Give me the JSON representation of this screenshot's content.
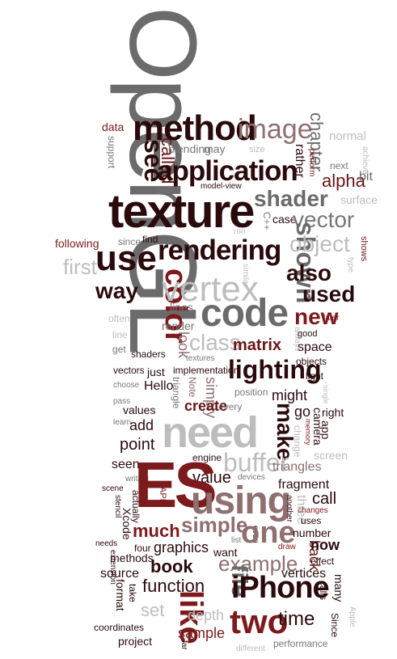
{
  "colors": {
    "dark": "#2b0a0c",
    "maroon": "#6a1416",
    "red": "#7d1a1c",
    "mauve": "#8f6f6f",
    "gray": "#777777",
    "lightgray": "#bdbdbd",
    "big_gray": "#6b6b6b"
  },
  "words": {
    "opengl": "OpenGL",
    "texture": "texture",
    "method": "method",
    "image": "image",
    "application": "application",
    "see": "see",
    "called": "called",
    "shader": "shader",
    "vector": "vector",
    "rendering": "rendering",
    "use": "use",
    "shown": "shown",
    "object": "object",
    "vertex": "vertex",
    "code": "code",
    "color": "color",
    "also": "also",
    "used": "used",
    "new": "new",
    "way": "way",
    "first": "first",
    "class": "class",
    "lighting": "lighting",
    "matrix": "matrix",
    "need": "need",
    "make": "make",
    "buffer": "buffer",
    "es": "ES",
    "using": "using",
    "one": "one",
    "like": "like",
    "two": "two",
    "iphone": "iPhone",
    "file": "file",
    "function": "function",
    "example": "example",
    "book": "book",
    "much": "much",
    "simple": "simple",
    "graphics": "graphics",
    "time": "time",
    "chapter": "chapter",
    "normal": "normal",
    "alpha": "alpha",
    "surface": "surface",
    "bit": "bit",
    "data": "data",
    "blending": "blending",
    "may": "may",
    "rather": "rather",
    "following": "following",
    "since": "since",
    "find": "find",
    "lines": "lines",
    "render": "render",
    "look": "look",
    "shaders": "shaders",
    "textures": "textures",
    "implementation": "implementation",
    "vectors": "vectors",
    "just": "just",
    "hello": "Hello",
    "triangle": "triangle",
    "note": "Note",
    "simply": "simply",
    "create": "create",
    "every": "every",
    "position": "position",
    "might": "might",
    "go": "go",
    "camera": "camera",
    "right": "right",
    "app": "app",
    "values": "values",
    "add": "add",
    "point": "point",
    "seen": "seen",
    "engine": "engine",
    "value": "value",
    "triangles": "triangles",
    "fragment": "fragment",
    "call": "call",
    "uses": "uses",
    "number": "number",
    "now": "now",
    "back": "back",
    "effect": "effect",
    "vertices": "vertices",
    "many": "many",
    "calls": "calls",
    "since2": "Since",
    "screen": "screen",
    "api": "API",
    "actually": "actually",
    "xcode": "Xcode",
    "stencil": "stencil",
    "scene": "scene",
    "four": "four",
    "needs": "needs",
    "methods": "methods",
    "extension": "extension",
    "source": "source",
    "format": "format",
    "take": "take",
    "set": "set",
    "depth": "depth",
    "sample": "sample",
    "coordinates": "coordinates",
    "project": "project",
    "far": "far",
    "different": "different",
    "performance": "performance",
    "want": "want",
    "draw": "draw",
    "three": "three",
    "another": "another",
    "changes": "changes",
    "list": "list",
    "even": "even",
    "devices": "devices",
    "writing": "writing",
    "memory": "memory",
    "change": "change",
    "single": "single",
    "light": "light",
    "objects": "objects",
    "space": "space",
    "good": "good",
    "always": "always",
    "later": "later",
    "often": "often",
    "line": "line",
    "get": "get",
    "choose": "choose",
    "pass": "pass",
    "learn": "learn",
    "support": "support",
    "size": "size",
    "perform": "perform",
    "next": "next",
    "achieve": "achieve",
    "cpp": "C++",
    "case": "case",
    "run": "run",
    "modelview": "model-view",
    "see2": "See",
    "similar": "similar",
    "shows": "shows",
    "type": "type",
    "apple": "Apple"
  }
}
